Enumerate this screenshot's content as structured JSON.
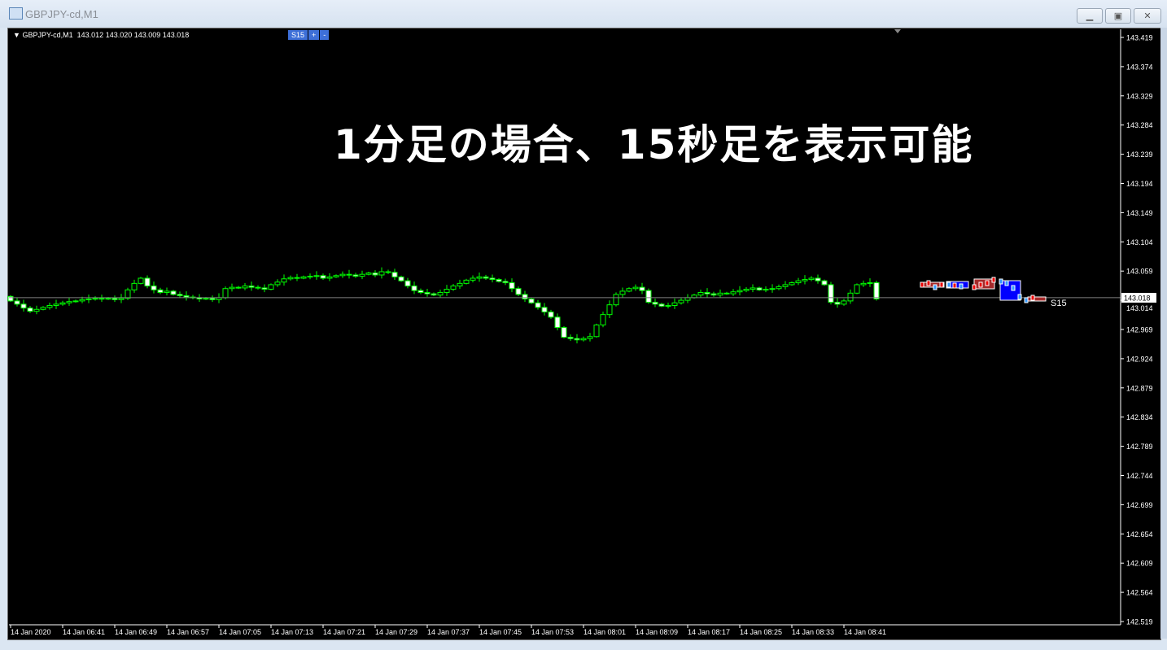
{
  "window": {
    "title": "GBPJPY-cd,M1",
    "buttons": [
      "minimize",
      "maximize",
      "close"
    ]
  },
  "chart_header": {
    "symbol": "GBPJPY-cd,M1",
    "ohlc": "143.012 143.020 143.009 143.018"
  },
  "timeframe_panel": {
    "label": "S15",
    "plus": "+",
    "minus": "-"
  },
  "overlay_text": "1分足の場合、15秒足を表示可能",
  "overlay_label": "S15",
  "colors": {
    "background": "#000000",
    "candle": "#00ff00",
    "bear_fill": "#ffffff",
    "price_line": "#808080",
    "s15_up": "#0000ff",
    "s15_down": "#a52a2a"
  },
  "chart_data": {
    "type": "candlestick",
    "symbol": "GBPJPY-cd",
    "timeframe": "M1",
    "first_open": 143.02,
    "closes": [
      143.013,
      143.008,
      143.002,
      142.997,
      143.0,
      143.003,
      143.006,
      143.008,
      143.01,
      143.012,
      143.013,
      143.015,
      143.016,
      143.017,
      143.016,
      143.017,
      143.015,
      143.017,
      143.03,
      143.04,
      143.048,
      143.036,
      143.03,
      143.026,
      143.028,
      143.023,
      143.021,
      143.019,
      143.018,
      143.016,
      143.017,
      143.015,
      143.018,
      143.032,
      143.034,
      143.033,
      143.036,
      143.034,
      143.033,
      143.031,
      143.038,
      143.042,
      143.047,
      143.049,
      143.048,
      143.05,
      143.051,
      143.052,
      143.048,
      143.05,
      143.052,
      143.054,
      143.053,
      143.051,
      143.054,
      143.056,
      143.053,
      143.058,
      143.057,
      143.05,
      143.044,
      143.036,
      143.029,
      143.026,
      143.024,
      143.022,
      143.026,
      143.031,
      143.036,
      143.04,
      143.045,
      143.048,
      143.05,
      143.048,
      143.046,
      143.043,
      143.041,
      143.032,
      143.023,
      143.016,
      143.01,
      143.003,
      142.996,
      142.988,
      142.972,
      142.957,
      142.955,
      142.953,
      142.955,
      142.958,
      142.976,
      142.992,
      143.007,
      143.023,
      143.028,
      143.032,
      143.034,
      143.029,
      143.011,
      143.008,
      143.005,
      143.006,
      143.01,
      143.014,
      143.018,
      143.022,
      143.026,
      143.024,
      143.022,
      143.025,
      143.024,
      143.027,
      143.029,
      143.031,
      143.033,
      143.03,
      143.031,
      143.032,
      143.035,
      143.038,
      143.041,
      143.044,
      143.046,
      143.048,
      143.044,
      143.038,
      143.011,
      143.008,
      143.013,
      143.025,
      143.038,
      143.04,
      143.041,
      143.016
    ],
    "current_price": "143.018",
    "ylim": [
      142.519,
      143.419
    ],
    "y_ticks": [
      "143.419",
      "143.374",
      "143.329",
      "143.284",
      "143.239",
      "143.194",
      "143.149",
      "143.104",
      "143.059",
      "143.014",
      "142.969",
      "142.924",
      "142.879",
      "142.834",
      "142.789",
      "142.744",
      "142.699",
      "142.654",
      "142.609",
      "142.564",
      "142.519"
    ],
    "x_ticks": [
      "14 Jan 2020",
      "14 Jan 06:41",
      "14 Jan 06:49",
      "14 Jan 06:57",
      "14 Jan 07:05",
      "14 Jan 07:13",
      "14 Jan 07:21",
      "14 Jan 07:29",
      "14 Jan 07:37",
      "14 Jan 07:45",
      "14 Jan 07:53",
      "14 Jan 08:01",
      "14 Jan 08:09",
      "14 Jan 08:17",
      "14 Jan 08:25",
      "14 Jan 08:33",
      "14 Jan 08:41"
    ],
    "grid": false
  }
}
